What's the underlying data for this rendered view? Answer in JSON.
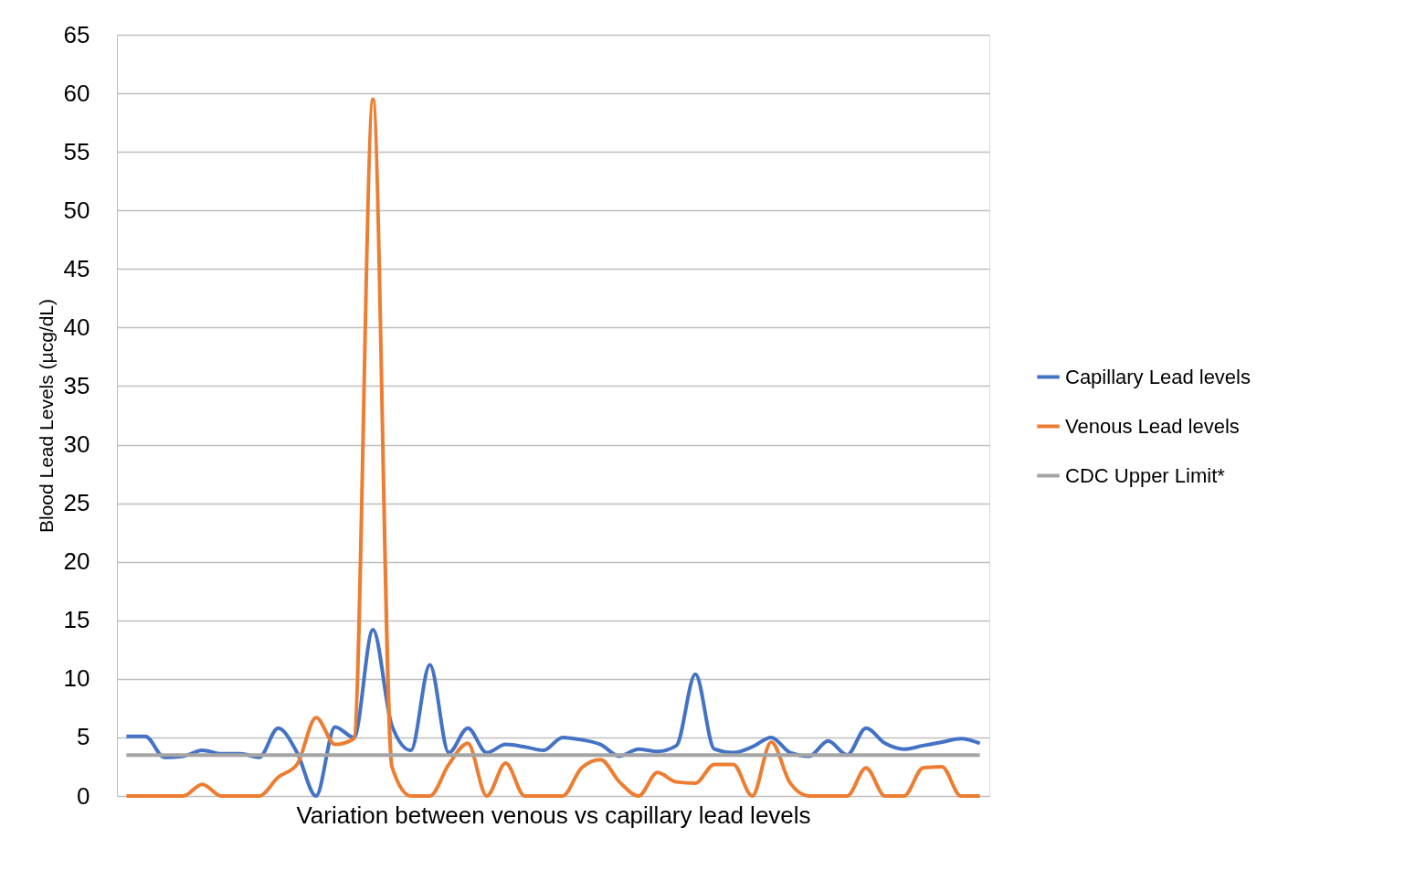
{
  "chart_data": {
    "type": "line",
    "xlabel": "Variation between venous vs capillary lead levels",
    "ylabel": "Blood Lead Levels (µcg/dL)",
    "categories": [
      null,
      null,
      null,
      null,
      null,
      null,
      null,
      null,
      null,
      null,
      null,
      null,
      null,
      null,
      null,
      null,
      null,
      null,
      null,
      null,
      null,
      null,
      null,
      null,
      null,
      null,
      null,
      null,
      null,
      null,
      null,
      null,
      null,
      null,
      null,
      null,
      null,
      null,
      null,
      null,
      null,
      null,
      null,
      null,
      null,
      null
    ],
    "series": [
      {
        "name": "Capillary Lead levels",
        "color": "#4472c4",
        "values": [
          5.1,
          5.1,
          3.3,
          3.4,
          3.9,
          3.6,
          3.6,
          3.3,
          5.8,
          3.7,
          0,
          5.9,
          5.0,
          14.2,
          6.0,
          3.9,
          11.2,
          3.7,
          5.8,
          3.7,
          4.4,
          4.2,
          3.9,
          5.0,
          4.8,
          4.4,
          3.4,
          4.0,
          3.8,
          4.3,
          10.4,
          4.0,
          3.7,
          4.2,
          5.0,
          3.7,
          3.4,
          4.7,
          3.5,
          5.8,
          4.5,
          4.0,
          4.3,
          4.6,
          4.9,
          4.5
        ]
      },
      {
        "name": "Venous Lead levels",
        "color": "#ed7d31",
        "values": [
          0,
          0,
          0,
          0,
          1.0,
          0,
          0,
          0,
          1.6,
          2.7,
          6.7,
          4.4,
          4.9,
          59.5,
          2.5,
          0,
          0,
          2.7,
          4.5,
          0,
          2.8,
          0,
          0,
          0,
          2.4,
          3.1,
          1.2,
          0,
          2.0,
          1.2,
          1.1,
          2.7,
          2.7,
          0,
          4.6,
          1.1,
          0,
          0,
          0,
          2.4,
          0,
          0,
          2.4,
          2.5,
          0,
          0
        ]
      },
      {
        "name": "CDC Upper Limit*",
        "color": "#a5a5a5",
        "values": [
          3.5,
          3.5,
          3.5,
          3.5,
          3.5,
          3.5,
          3.5,
          3.5,
          3.5,
          3.5,
          3.5,
          3.5,
          3.5,
          3.5,
          3.5,
          3.5,
          3.5,
          3.5,
          3.5,
          3.5,
          3.5,
          3.5,
          3.5,
          3.5,
          3.5,
          3.5,
          3.5,
          3.5,
          3.5,
          3.5,
          3.5,
          3.5,
          3.5,
          3.5,
          3.5,
          3.5,
          3.5,
          3.5,
          3.5,
          3.5,
          3.5,
          3.5,
          3.5,
          3.5,
          3.5,
          3.5
        ]
      }
    ],
    "ylim": [
      0,
      65
    ],
    "yticks": [
      0,
      5,
      10,
      15,
      20,
      25,
      30,
      35,
      40,
      45,
      50,
      55,
      60,
      65
    ],
    "grid": "y",
    "legend": "right",
    "line_style": "solid",
    "marker": "none"
  }
}
